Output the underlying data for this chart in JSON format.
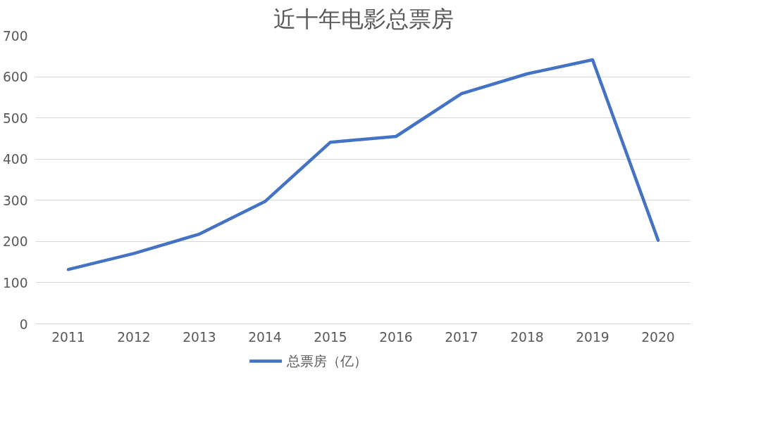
{
  "chart_data": {
    "type": "line",
    "title": "近十年电影总票房",
    "categories": [
      "2011",
      "2012",
      "2013",
      "2014",
      "2015",
      "2016",
      "2017",
      "2018",
      "2019",
      "2020"
    ],
    "series": [
      {
        "name": "总票房（亿）",
        "color": "#4472c4",
        "values": [
          132,
          171,
          218,
          297,
          441,
          455,
          559,
          607,
          641,
          203
        ]
      }
    ],
    "ylim": [
      0,
      700
    ],
    "yticks": [
      0,
      100,
      200,
      300,
      400,
      500,
      600,
      700
    ],
    "grid": "y",
    "legend": "bottom",
    "marker": "none",
    "line_style": "solid"
  }
}
